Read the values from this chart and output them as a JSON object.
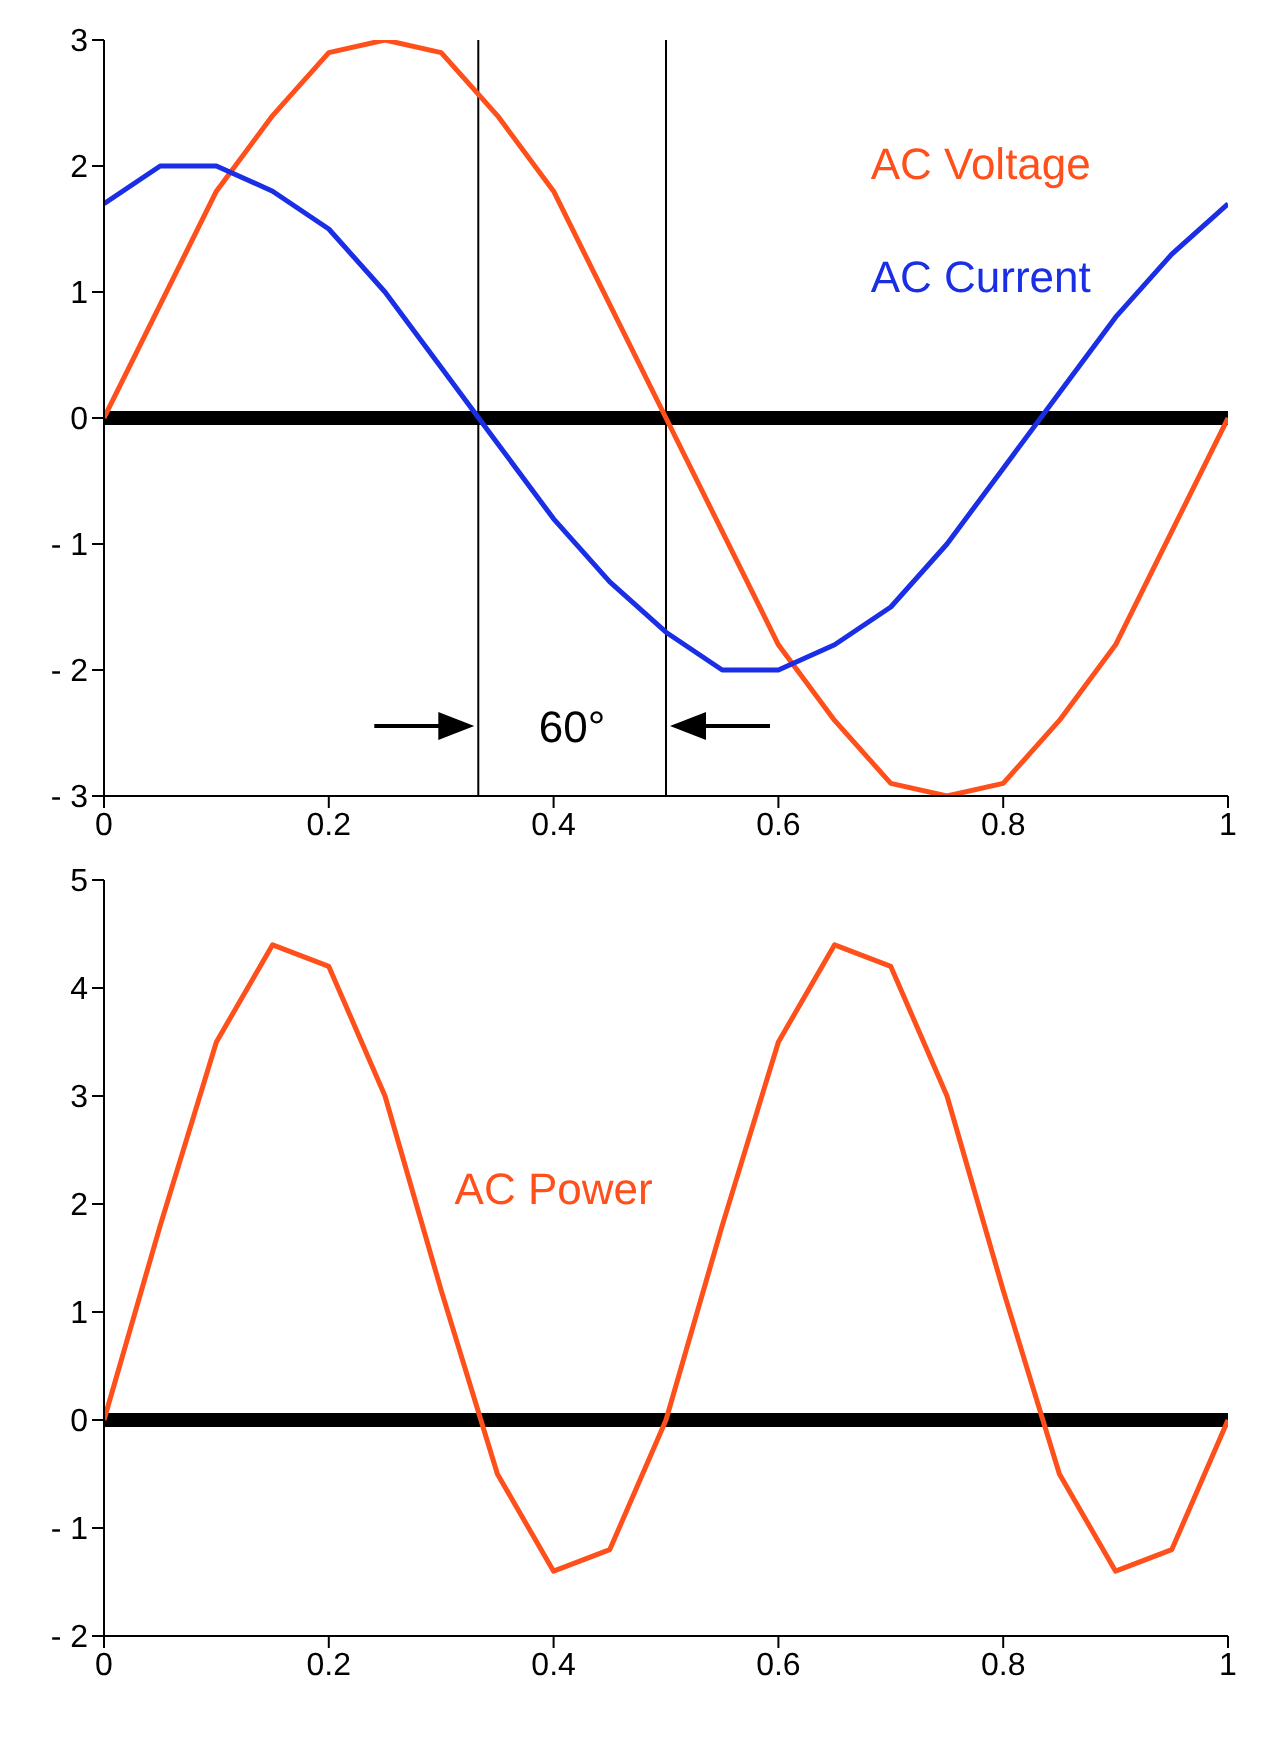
{
  "chart_data": [
    {
      "type": "line",
      "x": [
        0,
        0.05,
        0.1,
        0.15,
        0.2,
        0.25,
        0.3,
        0.35,
        0.4,
        0.45,
        0.5,
        0.55,
        0.6,
        0.65,
        0.7,
        0.75,
        0.8,
        0.85,
        0.9,
        0.95,
        1
      ],
      "series": [
        {
          "name": "AC Voltage",
          "color": "#ff4f1a",
          "values": [
            0,
            0.9,
            1.8,
            2.4,
            2.9,
            3,
            2.9,
            2.4,
            1.8,
            0.9,
            0,
            -0.9,
            -1.8,
            -2.4,
            -2.9,
            -3,
            -2.9,
            -2.4,
            -1.8,
            -0.9,
            0
          ]
        },
        {
          "name": "AC Current",
          "color": "#1a2ee6",
          "values": [
            1.7,
            2.0,
            2.0,
            1.8,
            1.5,
            1.0,
            0.4,
            -0.2,
            -0.8,
            -1.3,
            -1.7,
            -2.0,
            -2.0,
            -1.8,
            -1.5,
            -1.0,
            -0.4,
            0.2,
            0.8,
            1.3,
            1.7
          ]
        }
      ],
      "xlim": [
        0,
        1
      ],
      "xticks": [
        0,
        0.2,
        0.4,
        0.6,
        0.8,
        1
      ],
      "ylim": [
        -3,
        3
      ],
      "yticks": [
        {
          "value": -3,
          "label": "- 3"
        },
        {
          "value": -2,
          "label": "- 2"
        },
        {
          "value": -1,
          "label": "- 1"
        },
        0,
        1,
        2,
        3
      ],
      "ref_lines": [
        {
          "axis": "y",
          "value": 0,
          "color": "#000000"
        },
        {
          "axis": "x",
          "value": 0.333,
          "color": "#000000"
        },
        {
          "axis": "x",
          "value": 0.5,
          "color": "#000000"
        }
      ],
      "annotations": [
        "60°"
      ],
      "grid": false,
      "legend": false,
      "marker": "none",
      "line_style": "solid"
    },
    {
      "type": "line",
      "x": [
        0,
        0.05,
        0.1,
        0.15,
        0.2,
        0.25,
        0.3,
        0.35,
        0.4,
        0.45,
        0.5,
        0.55,
        0.6,
        0.65,
        0.7,
        0.75,
        0.8,
        0.85,
        0.9,
        0.95,
        1
      ],
      "series": [
        {
          "name": "AC Power",
          "color": "#ff4f1a",
          "values": [
            0,
            1.8,
            3.5,
            4.4,
            4.2,
            3.0,
            1.2,
            -0.5,
            -1.4,
            -1.2,
            0,
            1.8,
            3.5,
            4.4,
            4.2,
            3.0,
            1.2,
            -0.5,
            -1.4,
            -1.2,
            0
          ]
        }
      ],
      "xlim": [
        0,
        1
      ],
      "xticks": [
        0,
        0.2,
        0.4,
        0.6,
        0.8,
        1
      ],
      "ylim": [
        -2,
        5
      ],
      "yticks": [
        {
          "value": -2,
          "label": "- 2"
        },
        {
          "value": -1,
          "label": "- 1"
        },
        0,
        1,
        2,
        3,
        4,
        5
      ],
      "ref_lines": [
        {
          "axis": "y",
          "value": 0,
          "color": "#000000"
        }
      ],
      "grid": false,
      "legend": false,
      "marker": "none",
      "line_style": "solid"
    }
  ]
}
